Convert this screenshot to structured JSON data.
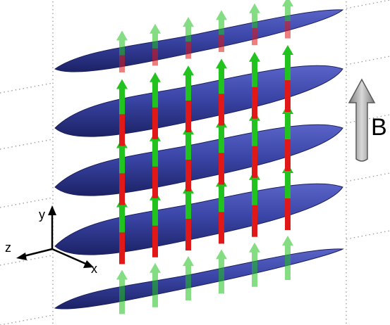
{
  "field": {
    "label": "B",
    "arrow_color": "#a9a9a9"
  },
  "axes": {
    "x_label": "x",
    "y_label": "y",
    "z_label": "z"
  },
  "layers": {
    "count": 5,
    "spins_per_layer": 6,
    "layer_color": "#3b46a8",
    "spin_up_color": "#22c21f",
    "spin_down_color": "#e01818"
  },
  "guides": {
    "dotted_color": "#9a9a9a"
  }
}
